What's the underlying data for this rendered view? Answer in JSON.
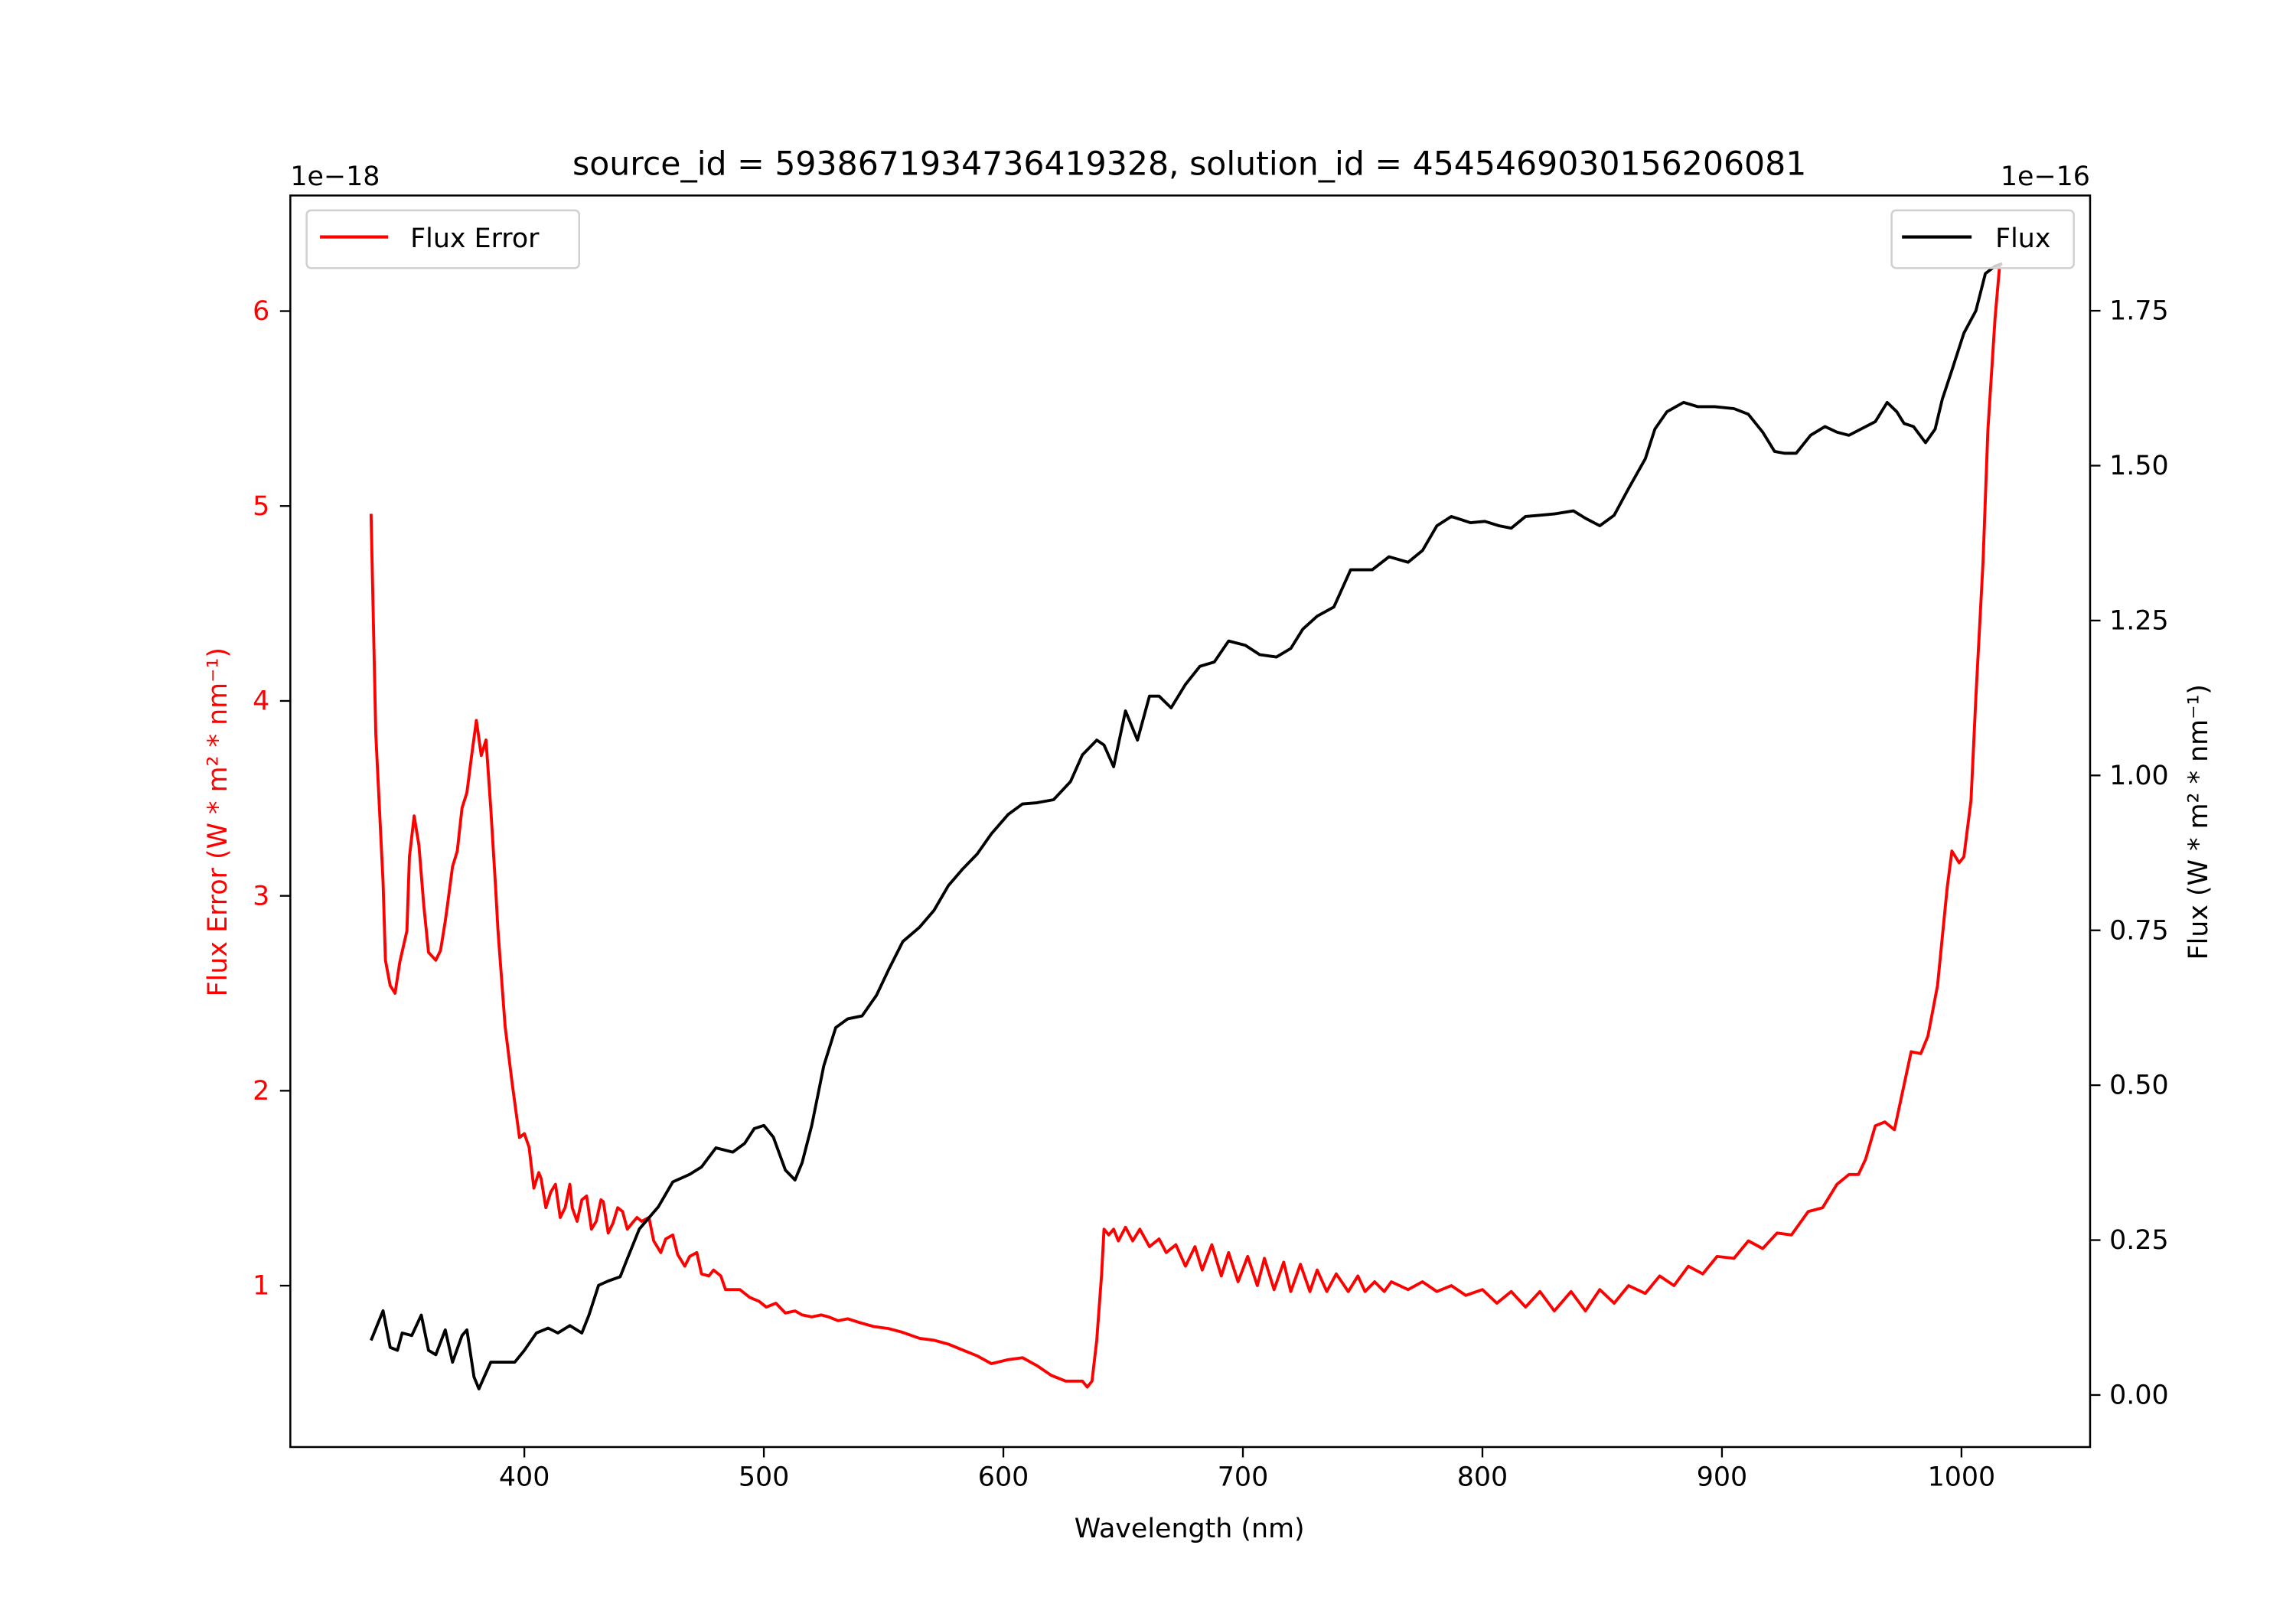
{
  "chart_data": {
    "type": "line",
    "title": "source_id = 5938671934736419328, solution_id = 4545469030156206081",
    "xlabel": "Wavelength (nm)",
    "xlim": [
      302.3,
      1053.7
    ],
    "xticks": [
      400,
      500,
      600,
      700,
      800,
      900,
      1000
    ],
    "left_axis": {
      "label": "Flux Error (W * m² * nm⁻¹)",
      "offset_text": "1e−18",
      "ylim": [
        0.172,
        6.593
      ],
      "ticks": [
        1,
        2,
        3,
        4,
        5,
        6
      ],
      "tick_labels": [
        "1",
        "2",
        "3",
        "4",
        "5",
        "6"
      ],
      "color": "#ff0000"
    },
    "right_axis": {
      "label": "Flux (W * m² * nm⁻¹)",
      "offset_text": "1e−16",
      "ylim": [
        -0.084,
        1.936
      ],
      "ticks": [
        0,
        0.25,
        0.5,
        0.75,
        1.0,
        1.25,
        1.5,
        1.75
      ],
      "tick_labels": [
        "0.00",
        "0.25",
        "0.50",
        "0.75",
        "1.00",
        "1.25",
        "1.50",
        "1.75"
      ],
      "color": "#000000"
    },
    "legend_left": {
      "label": "Flux Error",
      "placement": "upper-left"
    },
    "legend_right": {
      "label": "Flux",
      "placement": "upper-right"
    },
    "series": [
      {
        "name": "Flux Error",
        "axis": "left",
        "color": "#ff0000",
        "x": [
          336,
          338,
          341,
          342,
          344,
          346,
          348,
          351,
          352,
          354,
          356,
          358,
          360,
          363,
          365,
          367,
          368,
          370,
          372,
          374,
          376,
          378,
          380,
          382,
          384,
          386,
          388,
          389,
          392,
          395,
          398,
          400,
          402,
          404,
          406,
          407,
          409,
          411,
          413,
          415,
          417,
          419,
          420,
          422,
          424,
          426,
          428,
          430,
          432,
          433,
          435,
          437,
          439,
          441,
          443,
          445,
          447,
          449,
          452,
          454,
          457,
          459,
          462,
          464,
          467,
          469,
          472,
          474,
          477,
          479,
          482,
          484,
          488,
          490,
          494,
          498,
          501,
          505,
          509,
          513,
          516,
          520,
          524,
          527,
          531,
          535,
          540,
          546,
          552,
          558,
          565,
          571,
          577,
          583,
          589,
          595,
          602,
          608,
          614,
          620,
          626,
          633,
          635,
          637,
          639,
          641,
          642,
          644,
          646,
          648,
          651,
          654,
          657,
          661,
          665,
          668,
          672,
          676,
          680,
          683,
          687,
          691,
          694,
          698,
          702,
          706,
          709,
          713,
          717,
          720,
          724,
          728,
          731,
          735,
          739,
          744,
          748,
          751,
          755,
          759,
          762,
          769,
          775,
          781,
          787,
          793,
          800,
          806,
          812,
          818,
          824,
          830,
          837,
          843,
          849,
          855,
          861,
          868,
          874,
          880,
          886,
          892,
          898,
          905,
          911,
          917,
          923,
          929,
          936,
          942,
          948,
          953,
          957,
          960,
          964,
          968,
          972,
          975,
          979,
          983,
          986,
          990,
          994,
          996,
          999,
          1001,
          1004,
          1006,
          1009,
          1011,
          1014,
          1016
        ],
        "y": [
          4.96,
          3.83,
          3.07,
          2.67,
          2.54,
          2.5,
          2.66,
          2.82,
          3.2,
          3.41,
          3.26,
          2.95,
          2.71,
          2.67,
          2.72,
          2.87,
          2.96,
          3.15,
          3.23,
          3.45,
          3.53,
          3.72,
          3.9,
          3.72,
          3.8,
          3.45,
          3.04,
          2.82,
          2.33,
          2.03,
          1.76,
          1.78,
          1.71,
          1.5,
          1.58,
          1.55,
          1.4,
          1.48,
          1.52,
          1.35,
          1.4,
          1.52,
          1.4,
          1.33,
          1.44,
          1.46,
          1.29,
          1.33,
          1.44,
          1.43,
          1.27,
          1.32,
          1.4,
          1.38,
          1.29,
          1.32,
          1.35,
          1.33,
          1.35,
          1.23,
          1.17,
          1.24,
          1.26,
          1.16,
          1.1,
          1.15,
          1.17,
          1.06,
          1.05,
          1.08,
          1.05,
          0.98,
          0.98,
          0.98,
          0.94,
          0.92,
          0.89,
          0.91,
          0.86,
          0.87,
          0.85,
          0.84,
          0.85,
          0.84,
          0.82,
          0.83,
          0.81,
          0.79,
          0.78,
          0.76,
          0.73,
          0.72,
          0.7,
          0.67,
          0.64,
          0.6,
          0.62,
          0.63,
          0.59,
          0.54,
          0.51,
          0.51,
          0.48,
          0.51,
          0.72,
          1.06,
          1.29,
          1.26,
          1.29,
          1.23,
          1.3,
          1.23,
          1.29,
          1.2,
          1.24,
          1.17,
          1.21,
          1.1,
          1.2,
          1.08,
          1.21,
          1.05,
          1.17,
          1.02,
          1.15,
          1.0,
          1.14,
          0.98,
          1.12,
          0.97,
          1.11,
          0.97,
          1.08,
          0.97,
          1.06,
          0.97,
          1.05,
          0.97,
          1.02,
          0.97,
          1.02,
          0.98,
          1.02,
          0.97,
          1.0,
          0.95,
          0.98,
          0.91,
          0.97,
          0.89,
          0.97,
          0.87,
          0.97,
          0.87,
          0.98,
          0.91,
          1.0,
          0.96,
          1.05,
          1.0,
          1.1,
          1.06,
          1.15,
          1.14,
          1.23,
          1.19,
          1.27,
          1.26,
          1.38,
          1.4,
          1.52,
          1.57,
          1.57,
          1.65,
          1.82,
          1.84,
          1.8,
          1.97,
          2.2,
          2.19,
          2.28,
          2.54,
          3.04,
          3.23,
          3.17,
          3.2,
          3.49,
          4.02,
          4.71,
          5.39,
          5.96,
          6.24
        ]
      },
      {
        "name": "Flux",
        "axis": "right",
        "color": "#000000",
        "x": [
          336,
          341,
          344,
          347,
          349,
          353,
          357,
          360,
          363,
          367,
          370,
          374,
          376,
          379,
          381,
          386,
          391,
          396,
          400,
          405,
          410,
          414,
          419,
          424,
          427,
          431,
          435,
          440,
          443,
          448,
          456,
          462,
          469,
          474,
          480,
          487,
          492,
          496,
          500,
          504,
          509,
          513,
          516,
          520,
          525,
          530,
          535,
          541,
          547,
          552,
          558,
          565,
          571,
          577,
          583,
          589,
          595,
          602,
          608,
          614,
          621,
          628,
          633,
          639,
          642,
          646,
          651,
          656,
          661,
          665,
          670,
          676,
          682,
          688,
          694,
          701,
          707,
          714,
          720,
          725,
          731,
          738,
          745,
          754,
          761,
          769,
          775,
          781,
          787,
          795,
          801,
          807,
          812,
          818,
          824,
          830,
          838,
          843,
          849,
          855,
          861,
          868,
          872,
          877,
          884,
          890,
          897,
          905,
          911,
          917,
          922,
          926,
          931,
          937,
          943,
          948,
          953,
          958,
          964,
          969,
          973,
          976,
          980,
          985,
          989,
          992,
          996,
          1001,
          1006,
          1010,
          1014,
          1017
        ],
        "y": [
          0.088,
          0.136,
          0.077,
          0.072,
          0.1,
          0.096,
          0.129,
          0.072,
          0.065,
          0.105,
          0.053,
          0.096,
          0.105,
          0.029,
          0.01,
          0.053,
          0.053,
          0.053,
          0.072,
          0.1,
          0.108,
          0.1,
          0.112,
          0.1,
          0.129,
          0.177,
          0.184,
          0.191,
          0.22,
          0.268,
          0.304,
          0.344,
          0.356,
          0.368,
          0.399,
          0.392,
          0.406,
          0.43,
          0.435,
          0.416,
          0.363,
          0.347,
          0.375,
          0.435,
          0.531,
          0.593,
          0.607,
          0.612,
          0.645,
          0.686,
          0.732,
          0.755,
          0.782,
          0.822,
          0.849,
          0.873,
          0.906,
          0.937,
          0.954,
          0.956,
          0.961,
          0.99,
          1.033,
          1.057,
          1.049,
          1.014,
          1.104,
          1.057,
          1.128,
          1.128,
          1.109,
          1.147,
          1.176,
          1.183,
          1.217,
          1.21,
          1.195,
          1.191,
          1.205,
          1.236,
          1.257,
          1.272,
          1.332,
          1.332,
          1.353,
          1.344,
          1.363,
          1.403,
          1.418,
          1.408,
          1.41,
          1.403,
          1.399,
          1.418,
          1.42,
          1.422,
          1.427,
          1.415,
          1.403,
          1.42,
          1.463,
          1.511,
          1.559,
          1.587,
          1.602,
          1.595,
          1.595,
          1.592,
          1.583,
          1.554,
          1.523,
          1.52,
          1.52,
          1.549,
          1.563,
          1.554,
          1.549,
          1.559,
          1.571,
          1.602,
          1.587,
          1.568,
          1.563,
          1.537,
          1.559,
          1.607,
          1.654,
          1.714,
          1.75,
          1.81,
          1.822,
          1.826
        ]
      }
    ]
  }
}
